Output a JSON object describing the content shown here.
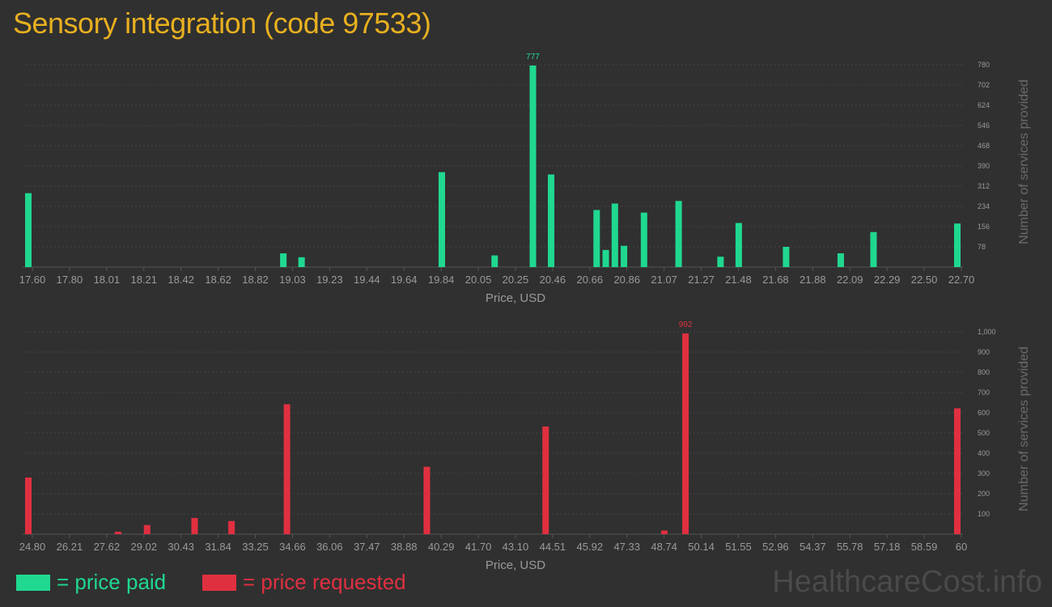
{
  "title": "Sensory integration (code 97533)",
  "colors": {
    "paid": "#20d890",
    "requested": "#e03040",
    "title": "#e8b020",
    "axis_text": "#9a9a9a",
    "grid": "#444444"
  },
  "legend": {
    "paid_label": "= price paid",
    "requested_label": "= price requested"
  },
  "watermark": "HealthcareCost.info",
  "chart_data": [
    {
      "type": "bar",
      "name": "paid",
      "xlabel": "Price, USD",
      "ylabel": "Number of services provided",
      "xlim": [
        17.6,
        22.7
      ],
      "ylim": [
        0,
        780
      ],
      "yticks": [
        78,
        156,
        234,
        312,
        390,
        468,
        546,
        624,
        702,
        780
      ],
      "xtick_labels": [
        "17.60",
        "17.80",
        "18.01",
        "18.21",
        "18.42",
        "18.62",
        "18.82",
        "19.03",
        "19.23",
        "19.44",
        "19.64",
        "19.84",
        "20.05",
        "20.25",
        "20.46",
        "20.66",
        "20.86",
        "21.07",
        "21.27",
        "21.48",
        "21.68",
        "21.88",
        "22.09",
        "22.29",
        "22.50",
        "22.70"
      ],
      "peak_label": "777",
      "x": [
        17.6,
        19.0,
        19.1,
        19.87,
        20.16,
        20.37,
        20.47,
        20.72,
        20.77,
        20.82,
        20.87,
        20.98,
        21.17,
        21.4,
        21.5,
        21.76,
        22.06,
        22.24,
        22.7
      ],
      "values": [
        285,
        53,
        38,
        366,
        45,
        777,
        357,
        220,
        66,
        245,
        82,
        210,
        255,
        40,
        170,
        78,
        53,
        135,
        168
      ]
    },
    {
      "type": "bar",
      "name": "requested",
      "xlabel": "Price, USD",
      "ylabel": "Number of services provided",
      "xlim": [
        24.8,
        60
      ],
      "ylim": [
        0,
        1000
      ],
      "yticks": [
        100,
        200,
        300,
        400,
        500,
        600,
        700,
        800,
        900,
        1000
      ],
      "ytick_labels": [
        "100",
        "200",
        "300",
        "400",
        "500",
        "600",
        "700",
        "800",
        "900",
        "1,000"
      ],
      "xtick_labels": [
        "24.80",
        "26.21",
        "27.62",
        "29.02",
        "30.43",
        "31.84",
        "33.25",
        "34.66",
        "36.06",
        "37.47",
        "38.88",
        "40.29",
        "41.70",
        "43.10",
        "44.51",
        "45.92",
        "47.33",
        "48.74",
        "50.14",
        "51.55",
        "52.96",
        "54.37",
        "55.78",
        "57.18",
        "58.59",
        "60"
      ],
      "peak_label": "992",
      "x": [
        24.8,
        28.2,
        29.3,
        31.1,
        32.5,
        34.6,
        39.9,
        44.4,
        48.9,
        49.7,
        60
      ],
      "values": [
        280,
        12,
        45,
        80,
        65,
        642,
        333,
        532,
        18,
        992,
        622
      ]
    }
  ]
}
